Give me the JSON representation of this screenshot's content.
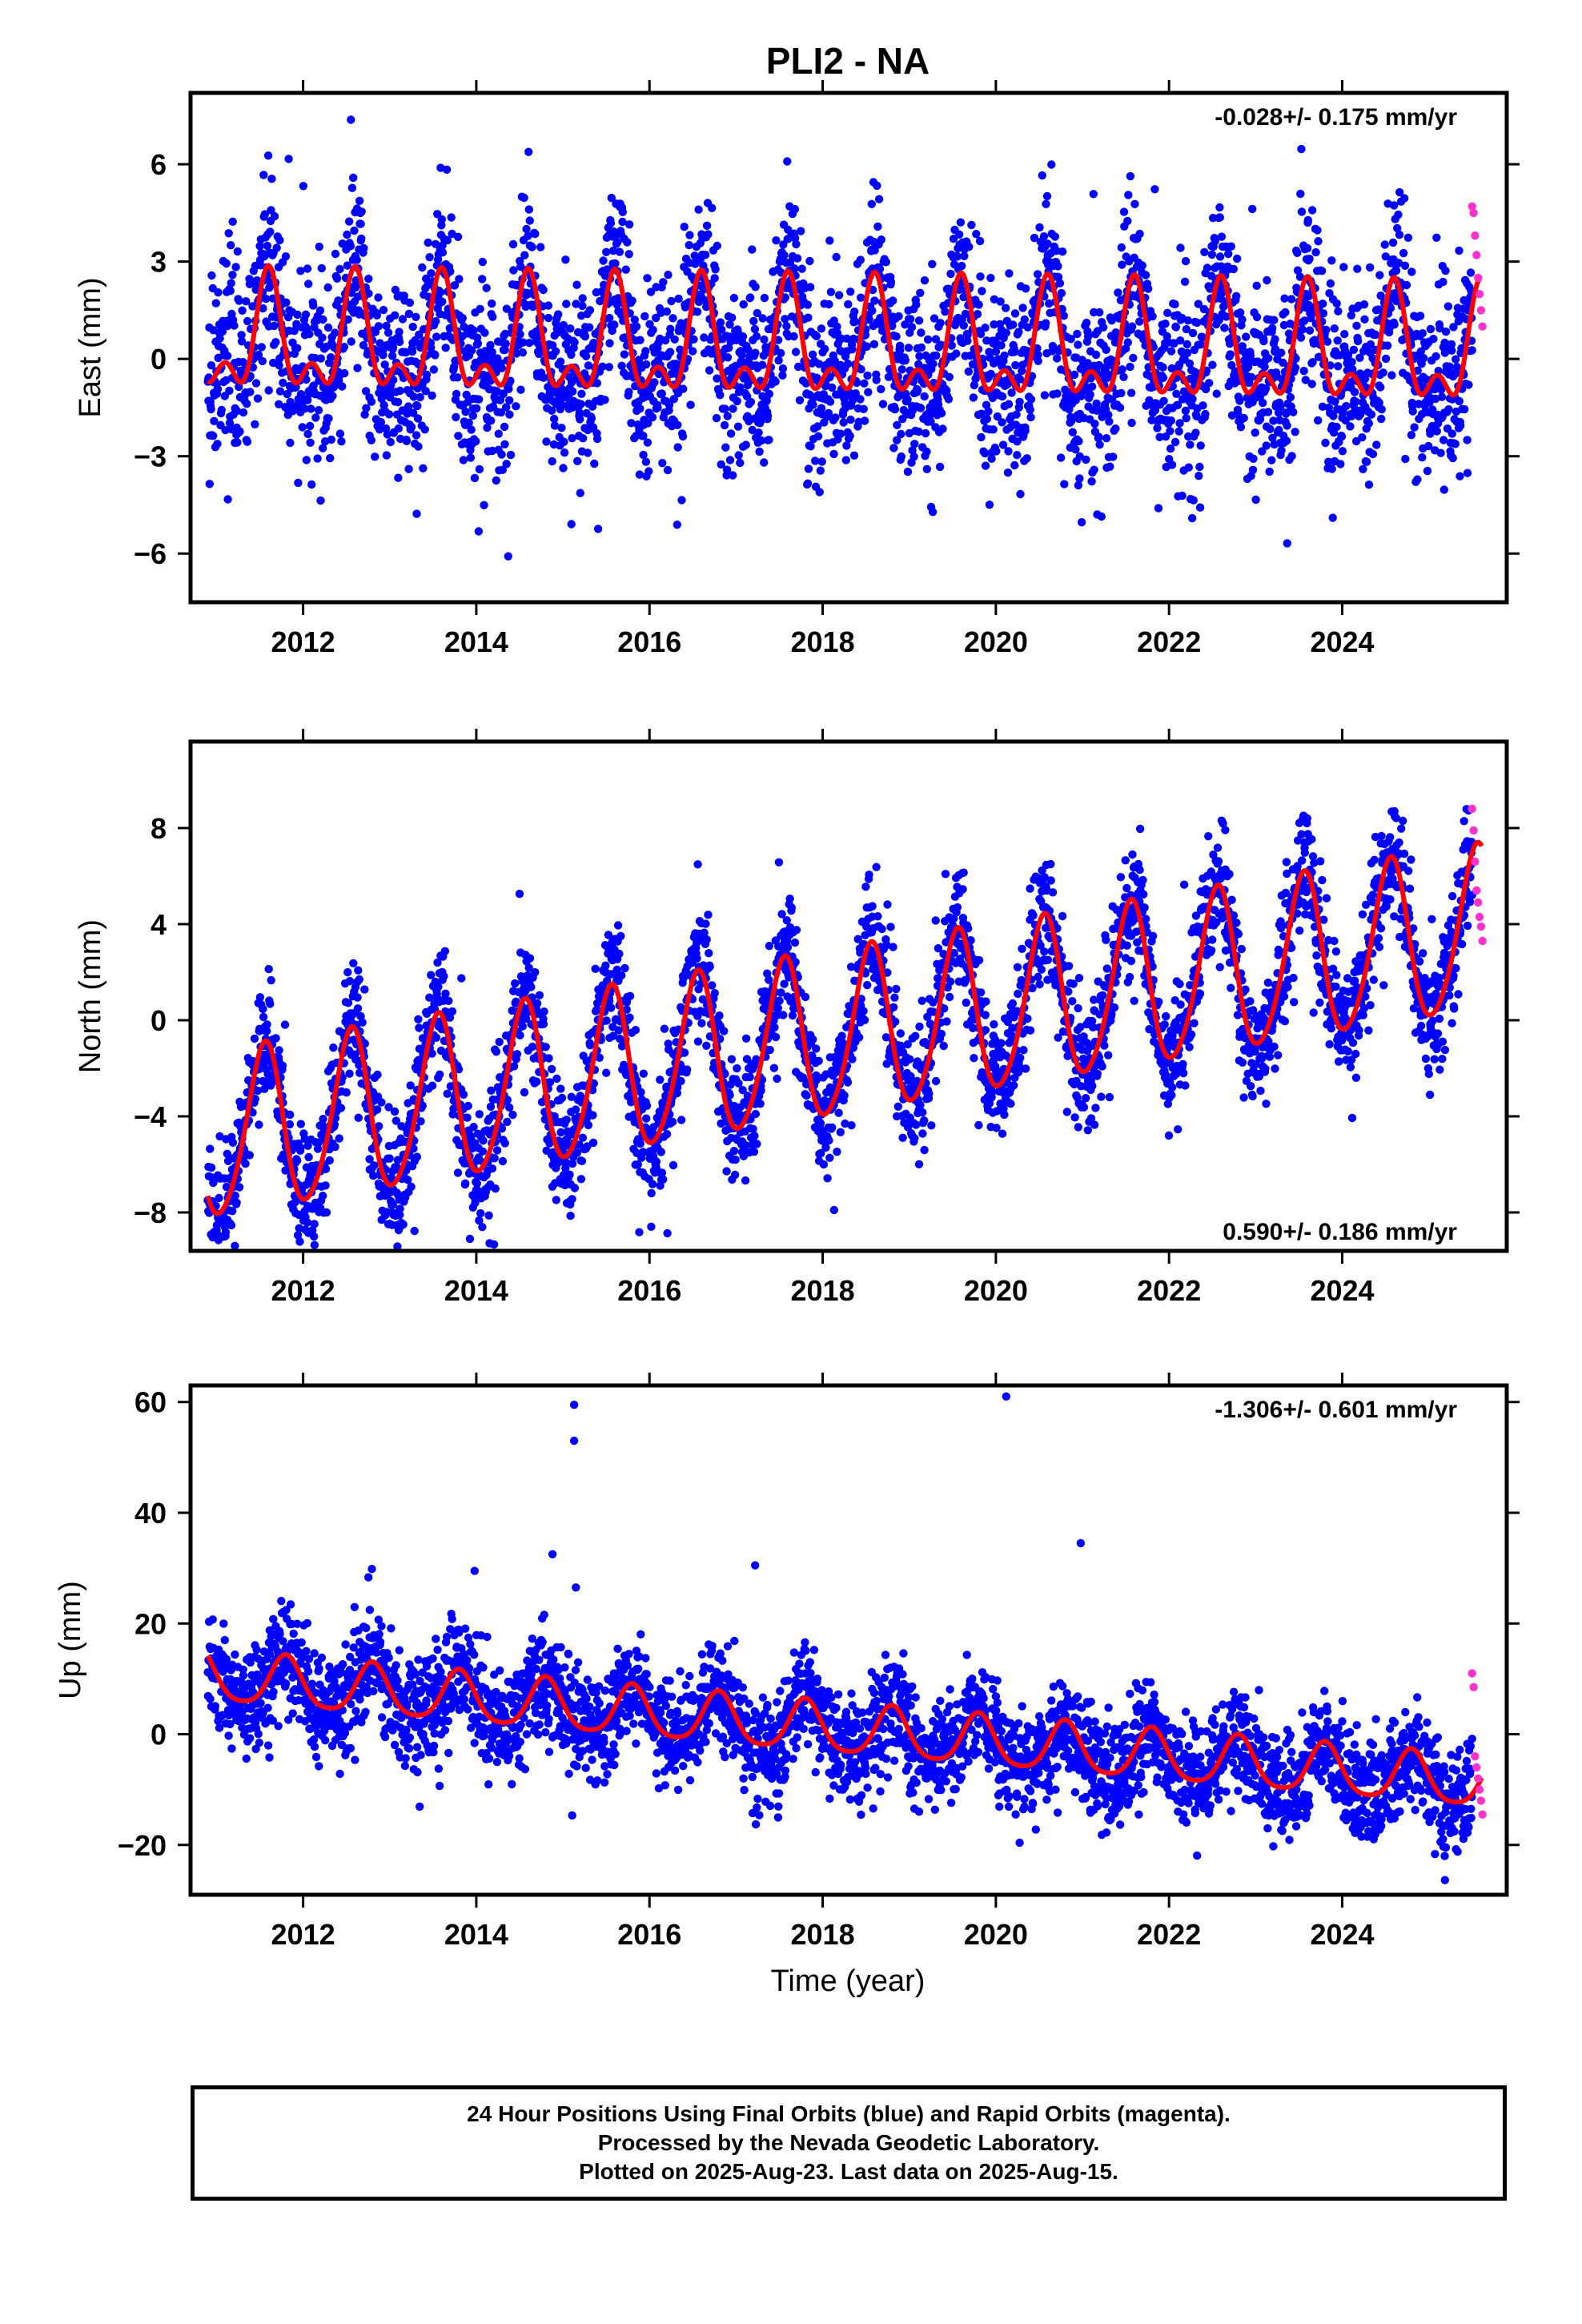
{
  "figure": {
    "title": "PLI2 - NA",
    "xlabel": "Time (year)",
    "footer_lines": [
      "24 Hour Positions Using Final Orbits (blue) and Rapid Orbits (magenta).",
      "Processed by the Nevada Geodetic Laboratory.",
      "Plotted on 2025-Aug-23. Last data on 2025-Aug-15."
    ],
    "colors": {
      "final_points": "#0000ff",
      "rapid_points": "#ff33cc",
      "model": "#ff0000",
      "frame": "#000000"
    }
  },
  "chart_data": [
    {
      "type": "scatter",
      "component": "East",
      "ylabel": "East (mm)",
      "rate": "-0.028+/- 0.175 mm/yr",
      "rate_position": "top-right",
      "xlim": [
        2010.7,
        2025.9
      ],
      "ylim": [
        -7.5,
        8.2
      ],
      "xticks": [
        2012,
        2014,
        2016,
        2018,
        2020,
        2022,
        2024
      ],
      "yticks": [
        -6,
        -3,
        0,
        3,
        6
      ],
      "ytick_labels": [
        "−6",
        "−3",
        "0",
        "3",
        "6"
      ],
      "model": {
        "trend": -0.028,
        "t0": 2018.0,
        "offset": 0.3,
        "annual_amp": 1.5,
        "annual_peak": 0.6,
        "semi_amp": 0.9,
        "semi_peak": 0.6
      },
      "scatter": {
        "std": 1.4,
        "outlier_rate": 0.01,
        "outlier_size": 4.0
      },
      "series": [
        {
          "name": "Final Orbits (blue)",
          "x_range": [
            2010.9,
            2025.5
          ],
          "count": 3600
        },
        {
          "name": "Rapid Orbits (magenta)",
          "x_range": [
            2025.5,
            2025.62
          ],
          "values": [
            4.7,
            4.5,
            3.8,
            3.2,
            2.5,
            2.0,
            1.5,
            1.0
          ]
        }
      ],
      "grid": false
    },
    {
      "type": "scatter",
      "component": "North",
      "ylabel": "North (mm)",
      "rate": "0.590+/- 0.186 mm/yr",
      "rate_position": "bottom-right",
      "xlim": [
        2010.7,
        2025.9
      ],
      "ylim": [
        -9.6,
        11.6
      ],
      "xticks": [
        2012,
        2014,
        2016,
        2018,
        2020,
        2022,
        2024
      ],
      "yticks": [
        -8,
        -4,
        0,
        4,
        8
      ],
      "ytick_labels": [
        "−8",
        "−4",
        "0",
        "4",
        "8"
      ],
      "model": {
        "trend": 0.59,
        "t0": 2018.0,
        "offset": -0.8,
        "annual_amp": 3.4,
        "annual_peak": 0.55,
        "semi_amp": 0.4,
        "semi_peak": 0.1
      },
      "scatter": {
        "std": 1.3,
        "outlier_rate": 0.008,
        "outlier_size": 4.0
      },
      "series": [
        {
          "name": "Final Orbits (blue)",
          "x_range": [
            2010.9,
            2025.5
          ],
          "count": 3600
        },
        {
          "name": "Rapid Orbits (magenta)",
          "x_range": [
            2025.5,
            2025.62
          ],
          "values": [
            8.8,
            7.9,
            6.6,
            5.4,
            4.9,
            4.3,
            3.9,
            3.3
          ]
        }
      ],
      "grid": false
    },
    {
      "type": "scatter",
      "component": "Up",
      "ylabel": "Up (mm)",
      "rate": "-1.306+/- 0.601 mm/yr",
      "rate_position": "top-right",
      "xlim": [
        2010.7,
        2025.9
      ],
      "ylim": [
        -29,
        63
      ],
      "xticks": [
        2012,
        2014,
        2016,
        2018,
        2020,
        2022,
        2024
      ],
      "yticks": [
        -20,
        0,
        20,
        40,
        60
      ],
      "ytick_labels": [
        "−20",
        "0",
        "20",
        "40",
        "60"
      ],
      "model": {
        "trend": -1.306,
        "t0": 2018.0,
        "offset": 1.0,
        "annual_amp": 4.5,
        "annual_peak": 0.8,
        "semi_amp": 0.8,
        "semi_peak": 0.3
      },
      "scatter": {
        "std": 4.8,
        "outlier_rate": 0.006,
        "outlier_size": 10.0
      },
      "outliers": [
        {
          "x": 2015.13,
          "y": 59.5
        },
        {
          "x": 2015.13,
          "y": 53
        },
        {
          "x": 2020.12,
          "y": 61
        },
        {
          "x": 2020.98,
          "y": 34.5
        },
        {
          "x": 2014.88,
          "y": 32.5
        },
        {
          "x": 2017.22,
          "y": 30.5
        },
        {
          "x": 2013.98,
          "y": 29.5
        },
        {
          "x": 2015.15,
          "y": 26.5
        }
      ],
      "series": [
        {
          "name": "Final Orbits (blue)",
          "x_range": [
            2010.9,
            2025.5
          ],
          "count": 3600
        },
        {
          "name": "Rapid Orbits (magenta)",
          "x_range": [
            2025.5,
            2025.62
          ],
          "values": [
            11,
            8.5,
            -4,
            -6,
            -8,
            -10,
            -12,
            -14.5
          ]
        }
      ],
      "grid": false
    }
  ]
}
